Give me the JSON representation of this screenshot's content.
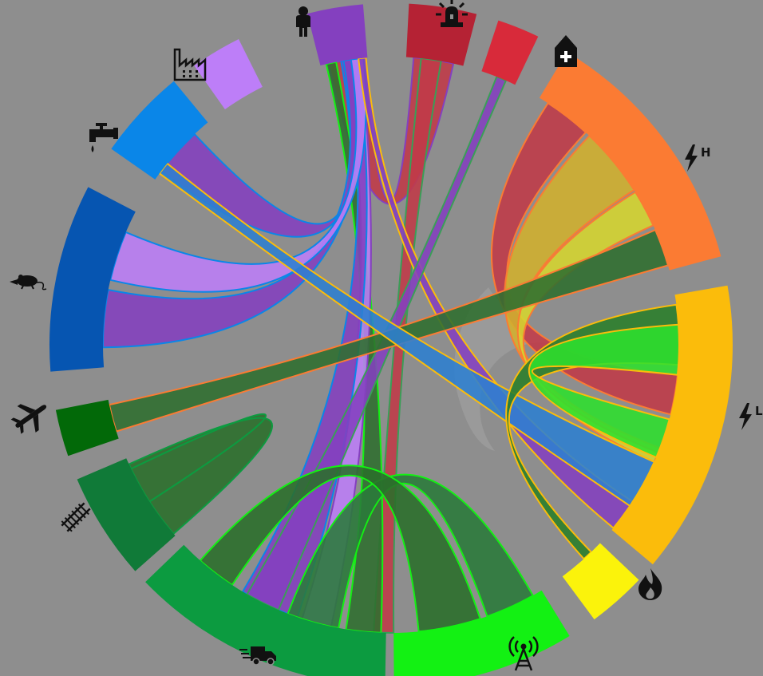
{
  "background": "#8e8e8e",
  "sector_labels": {
    "hv": "H",
    "lv": "L"
  },
  "sectors": [
    {
      "id": "population",
      "icon": "person-icon",
      "color": "#8440bf",
      "a0": -14.2,
      "a1": -4.7
    },
    {
      "id": "emergency",
      "icon": "siren-icon",
      "color": "#b52234",
      "a0": 3.0,
      "a1": 14.5
    },
    {
      "id": "health",
      "icon": "hospital-icon",
      "color": "#d82a3a",
      "a0": 18.3,
      "a1": 25.5
    },
    {
      "id": "power-high",
      "icon": "lightning-h-icon",
      "color": "#fb7b33",
      "a0": 31.0,
      "a1": 75.0
    },
    {
      "id": "power-low",
      "icon": "lightning-l-icon",
      "color": "#fbbc0b",
      "a0": 80.0,
      "a1": 130.0
    },
    {
      "id": "gas",
      "icon": "flame-icon",
      "color": "#fbf30b",
      "a0": 133.5,
      "a1": 143.5
    },
    {
      "id": "telecom",
      "icon": "antenna-icon",
      "color": "#13f113",
      "a0": 148.5,
      "a1": 179.5
    },
    {
      "id": "road",
      "icon": "truck-icon",
      "color": "#0c9b40",
      "a0": 181.0,
      "a1": 226.0
    },
    {
      "id": "rail",
      "icon": "railway-icon",
      "color": "#107a38",
      "a0": 228.5,
      "a1": 246.8
    },
    {
      "id": "air",
      "icon": "airplane-icon",
      "color": "#026908",
      "a0": 251.0,
      "a1": 259.0
    },
    {
      "id": "waste",
      "icon": "rat-icon",
      "color": "#0655b1",
      "a0": 265.5,
      "a1": 297.5
    },
    {
      "id": "water",
      "icon": "tap-icon",
      "color": "#0a86e8",
      "a0": 305.0,
      "a1": 320.5
    },
    {
      "id": "industry",
      "icon": "factory-icon",
      "color": "#bd7ef8",
      "a0": 324.8,
      "a1": 333.5
    }
  ],
  "ribbons": [
    {
      "s": [
        -12.5,
        -5.5
      ],
      "t": [
        4.5,
        12.5
      ],
      "fill": "#c03a48",
      "stroke": "#8440bf"
    },
    {
      "s": [
        6.0,
        10.0
      ],
      "t": [
        179.5,
        183.5
      ],
      "fill": "#c03a48",
      "stroke": "#3a9e57"
    },
    {
      "s": [
        -13.0,
        -11.0
      ],
      "t": [
        182.0,
        189.0
      ],
      "fill": "#2f6e2f",
      "stroke": "#13f113"
    },
    {
      "s": [
        -9.0,
        -6.0
      ],
      "t": [
        192.0,
        198.0
      ],
      "fill": "#bd7ef8",
      "stroke": "#8440bf"
    },
    {
      "s": [
        -8.5,
        -6.5
      ],
      "t": [
        199.0,
        211.0
      ],
      "fill": "#8440bf",
      "stroke": "#0a86e8"
    },
    {
      "s": [
        -10.0,
        -7.5
      ],
      "t": [
        307.0,
        317.0
      ],
      "fill": "#8440bf",
      "stroke": "#0a86e8"
    },
    {
      "s": [
        -9.5,
        -7.0
      ],
      "t": [
        269.5,
        281.0
      ],
      "fill": "#8440bf",
      "stroke": "#0a86e8"
    },
    {
      "s": [
        -8.0,
        -5.5
      ],
      "t": [
        283.0,
        293.0
      ],
      "fill": "#bd7ef8",
      "stroke": "#0a86e8"
    },
    {
      "s": [
        -6.5,
        -5.0
      ],
      "t": [
        123.0,
        129.5
      ],
      "fill": "#8440bf",
      "stroke": "#fbbc0b"
    },
    {
      "s": [
        21.5,
        23.5
      ],
      "t": [
        203.0,
        210.0
      ],
      "fill": "#8440bf",
      "stroke": "#3a9e57"
    },
    {
      "s": [
        33.0,
        42.5
      ],
      "t": [
        96.0,
        104.0
      ],
      "fill": "#c03a48",
      "stroke": "#fb7b33"
    },
    {
      "s": [
        43.5,
        57.5
      ],
      "t": [
        111.0,
        113.0
      ],
      "fill": "#d1b02e",
      "stroke": "#fb7b33"
    },
    {
      "s": [
        58.0,
        65.5
      ],
      "t": [
        112.0,
        114.0
      ],
      "fill": "#d6d62f",
      "stroke": "#fb7b33"
    },
    {
      "s": [
        66.5,
        74.0
      ],
      "t": [
        252.5,
        258.0
      ],
      "fill": "#2f6e2f",
      "stroke": "#fb7b33"
    },
    {
      "s": [
        306.5,
        309.0
      ],
      "t": [
        114.0,
        124.0
      ],
      "fill": "#2e7fd0",
      "stroke": "#fbbc0b"
    },
    {
      "s": [
        82.0,
        94.0
      ],
      "t": [
        136.0,
        138.0
      ],
      "fill": "#2a7e2a",
      "stroke": "#fbbc0b"
    },
    {
      "s": [
        105.0,
        113.0
      ],
      "t": [
        86.0,
        96.0
      ],
      "fill": "#2ee02e",
      "stroke": "#fbbc0b"
    },
    {
      "s": [
        150.5,
        160.5
      ],
      "t": [
        190.5,
        201.0
      ],
      "fill": "#2a7a3a",
      "stroke": "#13f113"
    },
    {
      "s": [
        162.0,
        174.5
      ],
      "t": [
        213.5,
        221.5
      ],
      "fill": "#2a6e2a",
      "stroke": "#13f113"
    },
    {
      "s": [
        229.0,
        244.5
      ],
      "t": [
        237.0,
        245.5
      ],
      "fill": "#2a6e2a",
      "stroke": "#0c9b40"
    }
  ]
}
